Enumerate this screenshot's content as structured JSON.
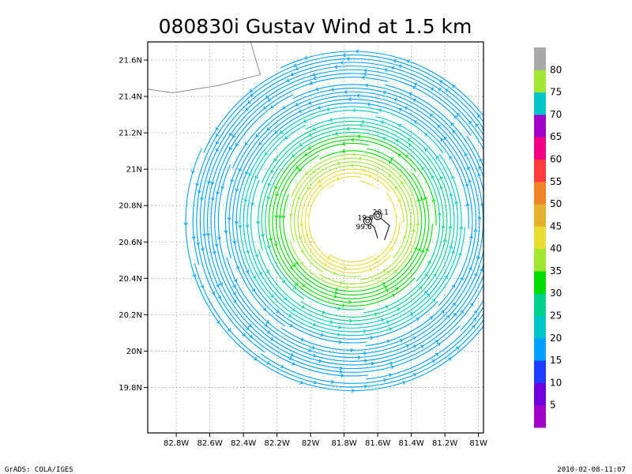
{
  "title": "080830i Gustav Wind at 1.5 km",
  "footer": {
    "left": "GrADS: COLA/IGES",
    "right": "2010-02-08-11:07"
  },
  "chart_data": {
    "type": "streamline",
    "xlim": [
      -82.97,
      -80.97
    ],
    "ylim": [
      19.55,
      21.7
    ],
    "grid": true,
    "x_ticks": [
      {
        "value": -82.8,
        "label": "82.8W"
      },
      {
        "value": -82.6,
        "label": "82.6W"
      },
      {
        "value": -82.4,
        "label": "82.4W"
      },
      {
        "value": -82.2,
        "label": "82.2W"
      },
      {
        "value": -82.0,
        "label": "82W"
      },
      {
        "value": -81.8,
        "label": "81.8W"
      },
      {
        "value": -81.6,
        "label": "81.6W"
      },
      {
        "value": -81.4,
        "label": "81.4W"
      },
      {
        "value": -81.2,
        "label": "81.2W"
      },
      {
        "value": -81.0,
        "label": "81W"
      }
    ],
    "y_ticks": [
      {
        "value": 19.8,
        "label": "19.8N"
      },
      {
        "value": 20.0,
        "label": "20N"
      },
      {
        "value": 20.2,
        "label": "20.2N"
      },
      {
        "value": 20.4,
        "label": "20.4N"
      },
      {
        "value": 20.6,
        "label": "20.6N"
      },
      {
        "value": 20.8,
        "label": "20.8N"
      },
      {
        "value": 21.0,
        "label": "21N"
      },
      {
        "value": 21.2,
        "label": "21.2N"
      },
      {
        "value": 21.4,
        "label": "21.4N"
      },
      {
        "value": 21.6,
        "label": "21.6N"
      }
    ],
    "colorbar": {
      "colors": [
        "#a000c8",
        "#6e00dc",
        "#1e3cff",
        "#00a0ff",
        "#00c8c8",
        "#00d28c",
        "#00dc00",
        "#a0e632",
        "#e6dc32",
        "#e6af2d",
        "#f08228",
        "#fa3c3c",
        "#f00082",
        "#a000c8",
        "#00c8c8",
        "#a0e632",
        "#aaaaaa"
      ],
      "labels": [
        "5",
        "10",
        "15",
        "20",
        "25",
        "30",
        "35",
        "40",
        "45",
        "50",
        "55",
        "60",
        "65",
        "70",
        "75",
        "80"
      ]
    },
    "storm_center": {
      "lon": -81.75,
      "lat": 20.715
    },
    "annotations": [
      {
        "text": "20.1",
        "lon": -81.63,
        "lat": 20.75,
        "color": "#000000"
      },
      {
        "text": "19.8",
        "lon": -81.72,
        "lat": 20.72,
        "color": "#000000"
      },
      {
        "text": "99.6",
        "lon": -81.73,
        "lat": 20.67,
        "color": "#000000"
      }
    ],
    "markers": [
      {
        "name": "storm-position-1",
        "lon": -81.6,
        "lat": 20.745
      },
      {
        "name": "storm-position-2",
        "lon": -81.66,
        "lat": 20.715
      }
    ],
    "track": [
      {
        "lon": -81.6,
        "lat": 20.745
      },
      {
        "lon": -81.53,
        "lat": 20.69
      },
      {
        "lon": -81.56,
        "lat": 20.61
      }
    ],
    "track2": [
      {
        "lon": -81.66,
        "lat": 20.715
      },
      {
        "lon": -81.62,
        "lat": 20.68
      },
      {
        "lon": -81.6,
        "lat": 20.62
      }
    ],
    "coastline": [
      {
        "lon": -82.37,
        "lat": 21.74
      },
      {
        "lon": -82.3,
        "lat": 21.52
      },
      {
        "lon": -82.55,
        "lat": 21.46
      },
      {
        "lon": -82.82,
        "lat": 21.42
      },
      {
        "lon": -82.97,
        "lat": 21.44
      }
    ]
  }
}
